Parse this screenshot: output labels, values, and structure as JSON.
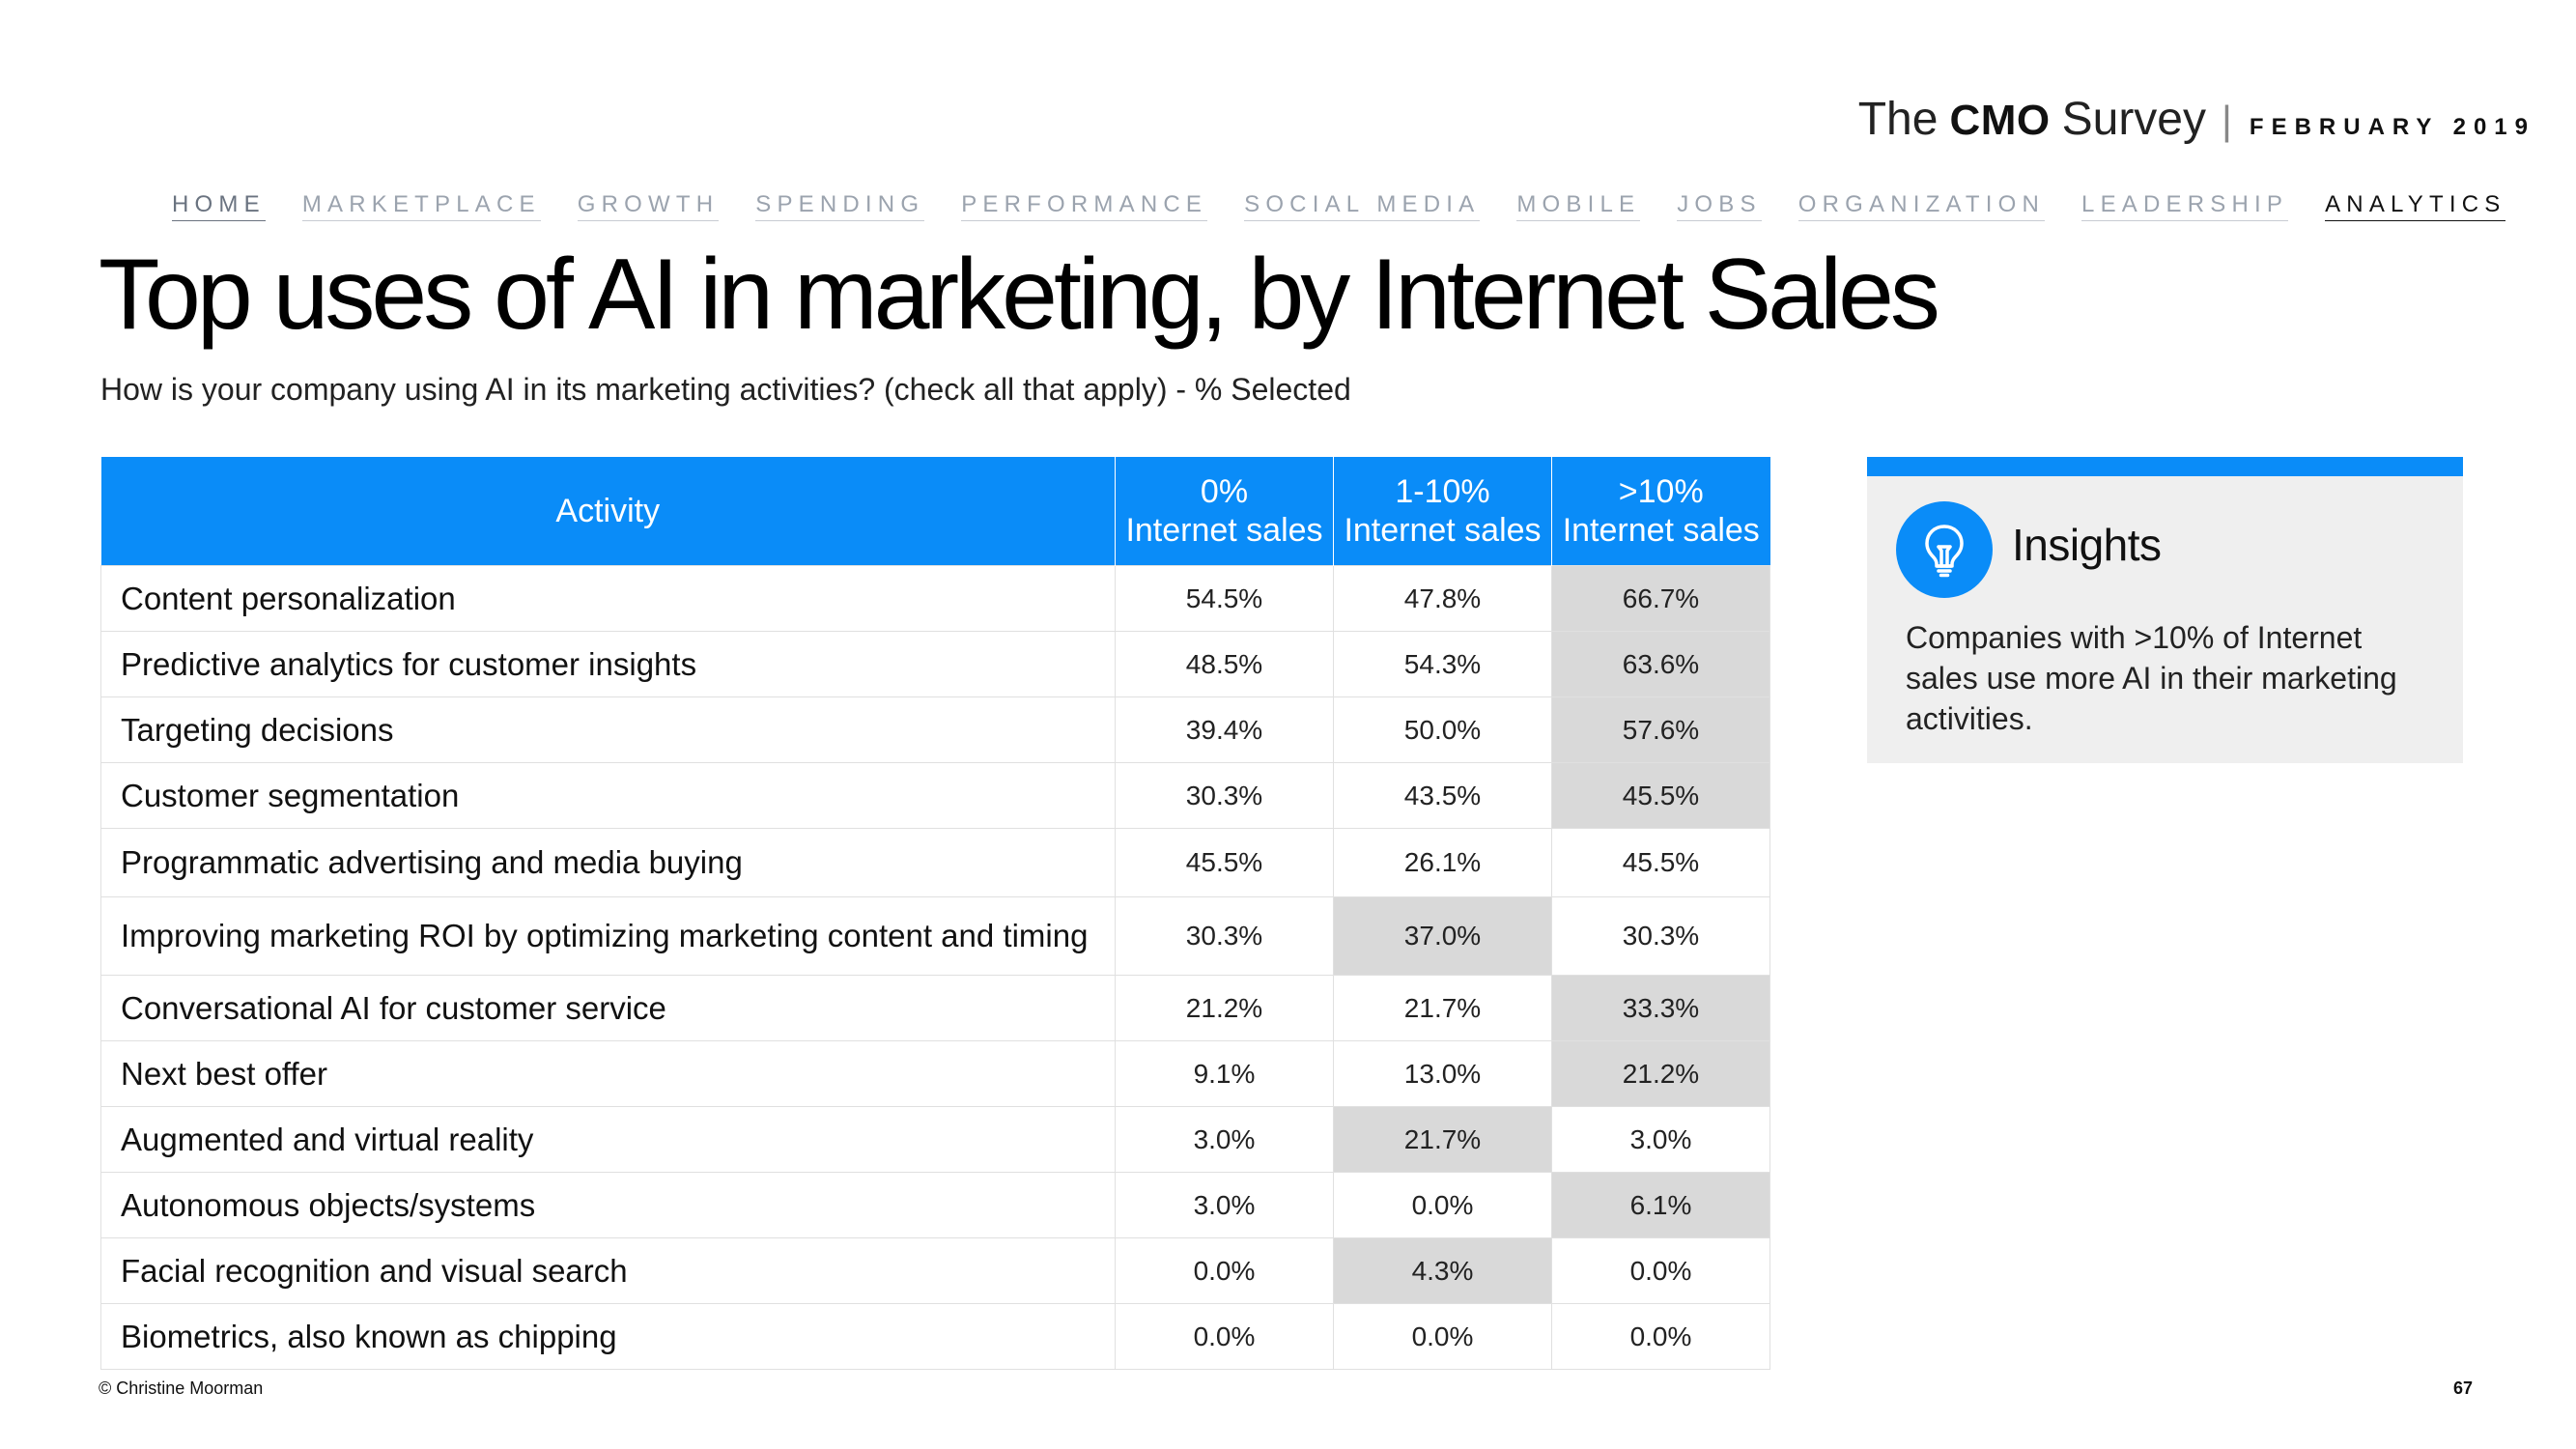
{
  "brand": {
    "the": "The",
    "cmo": "CMO",
    "survey": "Survey",
    "separator": "|",
    "date": "FEBRUARY 2019"
  },
  "nav": [
    {
      "label": "HOME"
    },
    {
      "label": "MARKETPLACE"
    },
    {
      "label": "GROWTH"
    },
    {
      "label": "SPENDING"
    },
    {
      "label": "PERFORMANCE"
    },
    {
      "label": "SOCIAL MEDIA"
    },
    {
      "label": "MOBILE"
    },
    {
      "label": "JOBS"
    },
    {
      "label": "ORGANIZATION"
    },
    {
      "label": "LEADERSHIP"
    },
    {
      "label": "ANALYTICS"
    }
  ],
  "nav_active": "ANALYTICS",
  "title": "Top uses of AI in marketing, by Internet Sales",
  "subtitle": "How is your company using AI in its marketing activities? (check all that apply) - % Selected",
  "table": {
    "headers": [
      {
        "line1": "Activity",
        "line2": ""
      },
      {
        "line1": "0%",
        "line2": "Internet sales"
      },
      {
        "line1": "1-10%",
        "line2": "Internet sales"
      },
      {
        "line1": ">10%",
        "line2": "Internet sales"
      }
    ],
    "rows": [
      {
        "activity": "Content personalization",
        "values": [
          "54.5%",
          "47.8%",
          "66.7%"
        ],
        "highlight": [
          false,
          false,
          true
        ]
      },
      {
        "activity": "Predictive analytics for customer insights",
        "values": [
          "48.5%",
          "54.3%",
          "63.6%"
        ],
        "highlight": [
          false,
          false,
          true
        ]
      },
      {
        "activity": "Targeting decisions",
        "values": [
          "39.4%",
          "50.0%",
          "57.6%"
        ],
        "highlight": [
          false,
          false,
          true
        ]
      },
      {
        "activity": "Customer segmentation",
        "values": [
          "30.3%",
          "43.5%",
          "45.5%"
        ],
        "highlight": [
          false,
          false,
          true
        ]
      },
      {
        "activity": "Programmatic advertising and media buying",
        "values": [
          "45.5%",
          "26.1%",
          "45.5%"
        ],
        "highlight": [
          false,
          false,
          false
        ]
      },
      {
        "activity": "Improving marketing ROI by optimizing marketing content and timing",
        "values": [
          "30.3%",
          "37.0%",
          "30.3%"
        ],
        "highlight": [
          false,
          true,
          false
        ]
      },
      {
        "activity": "Conversational AI for customer service",
        "values": [
          "21.2%",
          "21.7%",
          "33.3%"
        ],
        "highlight": [
          false,
          false,
          true
        ]
      },
      {
        "activity": "Next best offer",
        "values": [
          "9.1%",
          "13.0%",
          "21.2%"
        ],
        "highlight": [
          false,
          false,
          true
        ]
      },
      {
        "activity": "Augmented and virtual reality",
        "values": [
          "3.0%",
          "21.7%",
          "3.0%"
        ],
        "highlight": [
          false,
          true,
          false
        ]
      },
      {
        "activity": "Autonomous objects/systems",
        "values": [
          "3.0%",
          "0.0%",
          "6.1%"
        ],
        "highlight": [
          false,
          false,
          true
        ]
      },
      {
        "activity": "Facial recognition and visual search",
        "values": [
          "0.0%",
          "4.3%",
          "0.0%"
        ],
        "highlight": [
          false,
          true,
          false
        ]
      },
      {
        "activity": "Biometrics, also known as chipping",
        "values": [
          "0.0%",
          "0.0%",
          "0.0%"
        ],
        "highlight": [
          false,
          false,
          false
        ]
      }
    ],
    "highlight_color": "#d9d9d9",
    "header_color": "#0a8cf8"
  },
  "insights": {
    "heading": "Insights",
    "icon": "lightbulb-icon",
    "text": "Companies with >10% of Internet sales use more AI in their marketing activities."
  },
  "footer": {
    "copyright": "© Christine Moorman",
    "page_number": "67"
  }
}
